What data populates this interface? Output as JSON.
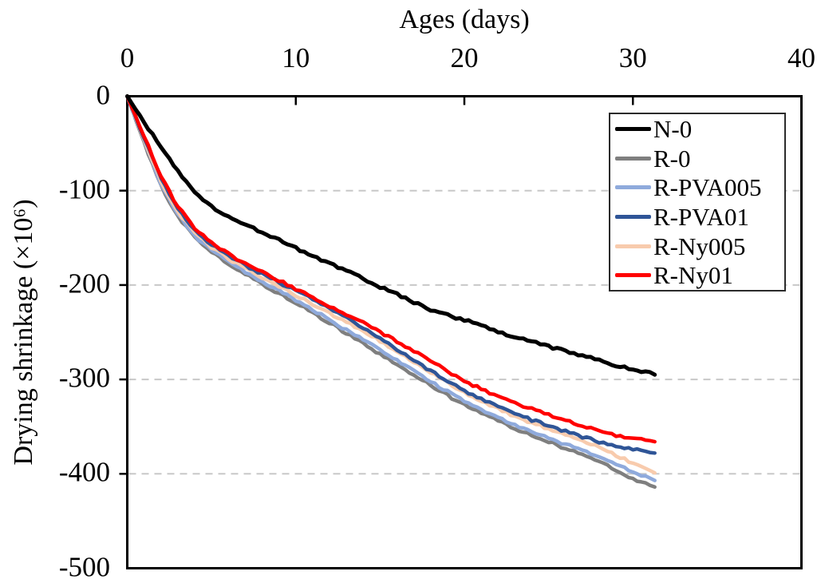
{
  "chart_data": {
    "type": "line",
    "title": "",
    "xlabel": "Ages (days)",
    "ylabel": "Drying shrinkage (×10⁶)",
    "xlim": [
      0,
      40
    ],
    "ylim": [
      -500,
      0
    ],
    "x_ticks": [
      0,
      10,
      20,
      30,
      40
    ],
    "y_ticks": [
      0,
      -100,
      -200,
      -300,
      -400,
      -500
    ],
    "grid": "horizontal dashed gridlines at -100 to -400",
    "legend_position": "top-right inside plot",
    "x_axis_position": "top",
    "days": [
      0,
      1,
      2,
      3,
      4,
      5,
      6,
      7,
      8,
      9,
      10,
      11,
      12,
      13,
      14,
      15,
      16,
      17,
      18,
      19,
      20,
      21,
      22,
      23,
      24,
      25,
      26,
      27,
      28,
      29,
      30,
      31,
      31.3
    ],
    "series": [
      {
        "name": "N-0",
        "color": "#000000",
        "values": [
          0,
          -28,
          -53,
          -79,
          -101,
          -117,
          -128,
          -136,
          -144,
          -152,
          -161,
          -169,
          -177,
          -185,
          -193,
          -202,
          -210,
          -218,
          -226,
          -232,
          -237,
          -243,
          -249,
          -255,
          -260,
          -265,
          -270,
          -275,
          -280,
          -285,
          -289,
          -293,
          -295
        ]
      },
      {
        "name": "R-0",
        "color": "#7f7f7f",
        "values": [
          0,
          -49,
          -95,
          -127,
          -150,
          -165,
          -177,
          -188,
          -199,
          -209,
          -219,
          -229,
          -240,
          -251,
          -262,
          -273,
          -284,
          -295,
          -306,
          -317,
          -327,
          -336,
          -344,
          -352,
          -359,
          -366,
          -373,
          -380,
          -387,
          -396,
          -405,
          -412,
          -414
        ]
      },
      {
        "name": "R-PVA005",
        "color": "#8faadc",
        "values": [
          0,
          -48,
          -93,
          -125,
          -148,
          -163,
          -175,
          -186,
          -196,
          -206,
          -216,
          -226,
          -237,
          -248,
          -258,
          -269,
          -280,
          -291,
          -302,
          -313,
          -323,
          -332,
          -340,
          -348,
          -355,
          -362,
          -369,
          -375,
          -382,
          -390,
          -398,
          -405,
          -407
        ]
      },
      {
        "name": "R-PVA01",
        "color": "#2f5597",
        "values": [
          0,
          -44,
          -87,
          -119,
          -142,
          -157,
          -169,
          -179,
          -188,
          -197,
          -206,
          -215,
          -225,
          -235,
          -246,
          -257,
          -268,
          -279,
          -291,
          -302,
          -312,
          -321,
          -329,
          -336,
          -343,
          -349,
          -355,
          -361,
          -366,
          -371,
          -374,
          -377,
          -378
        ]
      },
      {
        "name": "R-Ny005",
        "color": "#f8cbad",
        "values": [
          0,
          -46,
          -90,
          -122,
          -145,
          -160,
          -172,
          -182,
          -192,
          -201,
          -211,
          -220,
          -230,
          -239,
          -249,
          -259,
          -270,
          -281,
          -292,
          -303,
          -314,
          -323,
          -331,
          -339,
          -346,
          -352,
          -359,
          -365,
          -372,
          -380,
          -389,
          -397,
          -399
        ]
      },
      {
        "name": "R-Ny01",
        "color": "#ff0000",
        "values": [
          0,
          -42,
          -85,
          -117,
          -140,
          -155,
          -167,
          -177,
          -186,
          -195,
          -204,
          -213,
          -222,
          -231,
          -240,
          -250,
          -260,
          -270,
          -280,
          -291,
          -302,
          -310,
          -318,
          -325,
          -331,
          -337,
          -343,
          -349,
          -355,
          -359,
          -362,
          -365,
          -366
        ]
      }
    ],
    "axis_color": "#000000",
    "gridline_color": "#c8c8c8"
  }
}
